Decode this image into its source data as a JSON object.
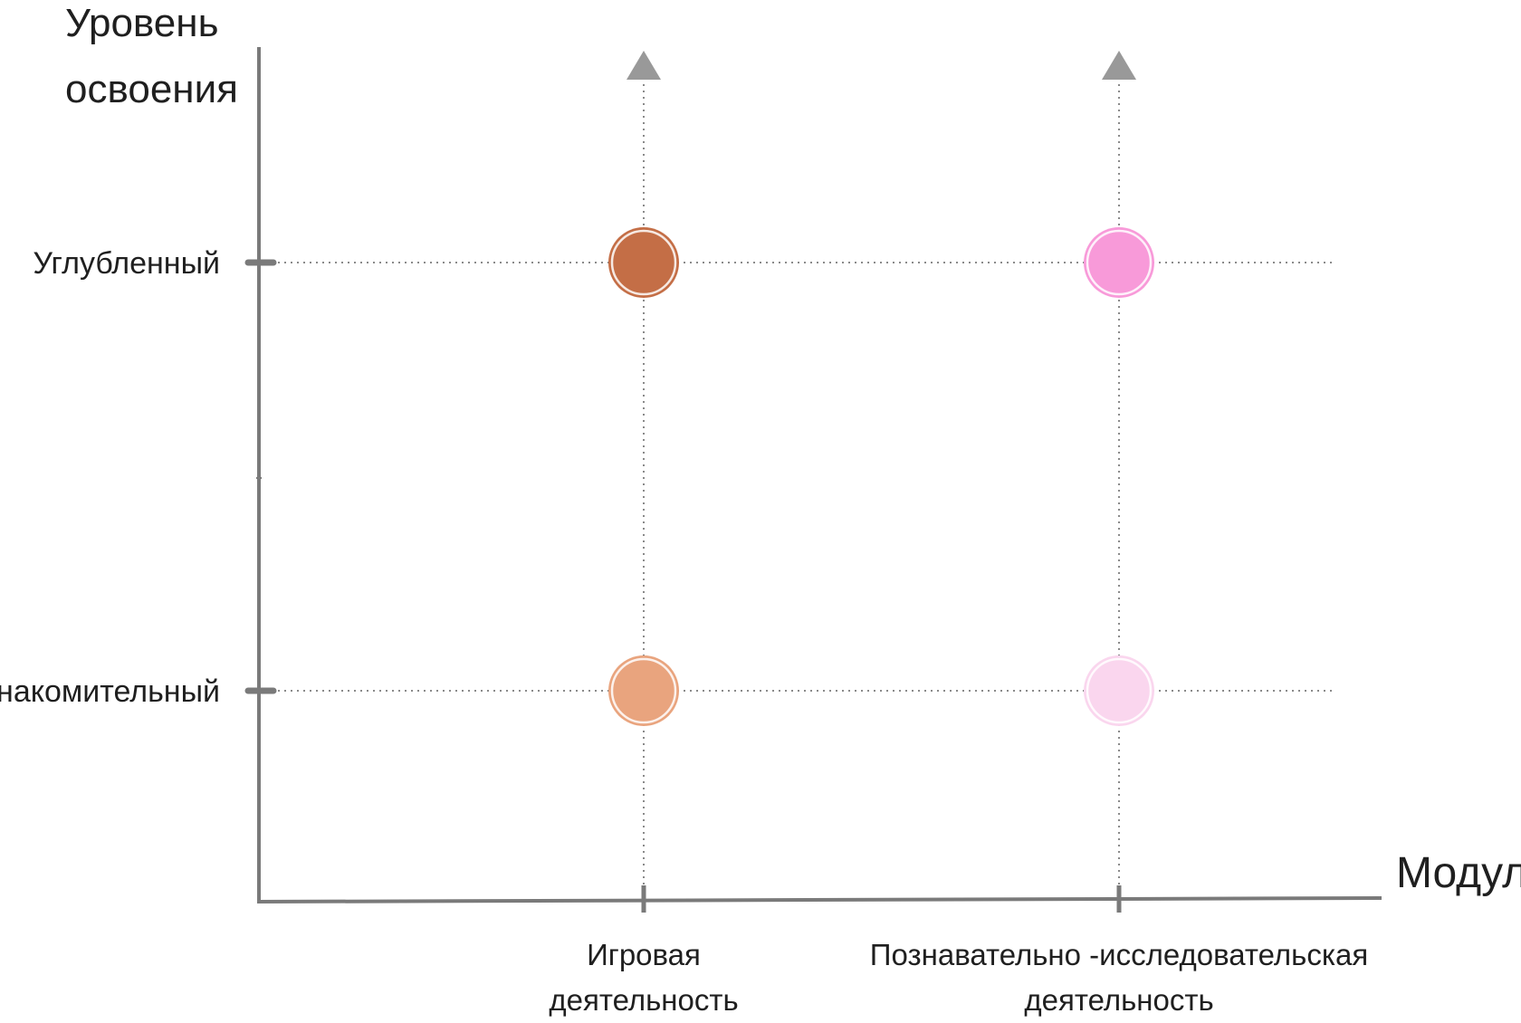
{
  "chart_data": {
    "type": "scatter",
    "title": "",
    "ylabel": [
      "Уровень",
      "освоения"
    ],
    "xlabel": "Модули",
    "categories": [
      [
        "Игровая",
        "деятельность"
      ],
      [
        "Познавательно -исследовательская",
        "деятельность"
      ]
    ],
    "levels": [
      "Ознакомительный",
      "Углубленный"
    ],
    "grid": "dotted",
    "points": [
      {
        "x": 0,
        "y": 1,
        "color": "#c46e46"
      },
      {
        "x": 0,
        "y": 0,
        "color": "#e9a47e"
      },
      {
        "x": 1,
        "y": 1,
        "color": "#f89ad9"
      },
      {
        "x": 1,
        "y": 0,
        "color": "#fad6ee"
      }
    ]
  },
  "colors": {
    "axis": "#7a7a7a",
    "grid": "#8a8a8a",
    "arrow": "#999999",
    "text": "#1f1f1f"
  }
}
